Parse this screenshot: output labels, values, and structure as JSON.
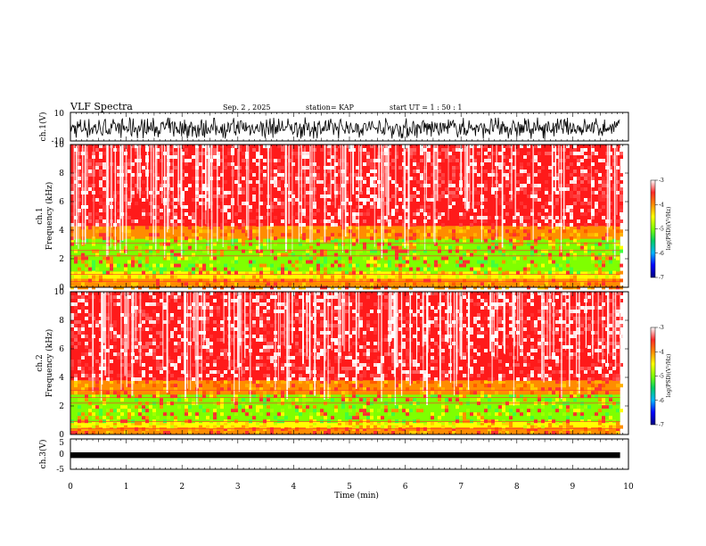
{
  "header": {
    "title": "VLF Spectra",
    "date": "Sep. 2 , 2025",
    "station": "station= KAP",
    "start": "start  UT =  1 : 50 : 1"
  },
  "colorbar": {
    "label": "log(PSD)(V²/Hz)",
    "ticks": [
      "-3",
      "-4",
      "-5",
      "-6",
      "-7"
    ],
    "colors": [
      "#ffffff",
      "#ff2a2a",
      "#ff8c00",
      "#ffff00",
      "#7fff00",
      "#00cc66",
      "#00b4ff",
      "#0000ff",
      "#000080"
    ]
  },
  "chart_data": [
    {
      "type": "line",
      "name": "ch.1 waveform",
      "ylabel": "ch.1(V)",
      "ylim": [
        -10,
        10
      ],
      "yticks": [
        "10",
        "-10"
      ],
      "xlim": [
        0,
        10
      ],
      "color": "#000000"
    },
    {
      "type": "heatmap",
      "name": "ch.1 spectrogram",
      "ylabel": "ch.1\nFrequency (kHz)",
      "ylim": [
        0,
        10
      ],
      "yticks": [
        "0",
        "2",
        "4",
        "6",
        "8",
        "10"
      ],
      "xlim": [
        0,
        9.85
      ],
      "bands_khz": [
        {
          "from": 0.0,
          "to": 0.6,
          "level": "orange"
        },
        {
          "from": 0.6,
          "to": 1.1,
          "level": "yellow-green"
        },
        {
          "from": 1.1,
          "to": 3.4,
          "level": "green"
        },
        {
          "from": 3.4,
          "to": 4.3,
          "level": "orange"
        },
        {
          "from": 4.3,
          "to": 10.0,
          "level": "red"
        }
      ]
    },
    {
      "type": "heatmap",
      "name": "ch.2 spectrogram",
      "ylabel": "ch.2\nFrequency (kHz)",
      "ylim": [
        0,
        10
      ],
      "yticks": [
        "0",
        "2",
        "4",
        "6",
        "8",
        "10"
      ],
      "xlim": [
        0,
        9.85
      ],
      "bands_khz": [
        {
          "from": 0.0,
          "to": 0.5,
          "level": "orange"
        },
        {
          "from": 0.5,
          "to": 0.9,
          "level": "yellow-green"
        },
        {
          "from": 0.9,
          "to": 2.8,
          "level": "green"
        },
        {
          "from": 2.8,
          "to": 3.8,
          "level": "orange"
        },
        {
          "from": 3.8,
          "to": 10.0,
          "level": "red"
        }
      ]
    },
    {
      "type": "line",
      "name": "ch.3 waveform",
      "ylabel": "ch.3(V)",
      "ylim": [
        -5,
        5
      ],
      "yticks": [
        "5",
        "0",
        "-5"
      ],
      "xlim": [
        0,
        10
      ],
      "band": [
        -1,
        0
      ],
      "color": "#000000"
    }
  ],
  "xaxis": {
    "label": "Time (min)",
    "range": [
      0,
      10
    ],
    "ticks": [
      "0",
      "1",
      "2",
      "3",
      "4",
      "5",
      "6",
      "7",
      "8",
      "9",
      "10"
    ]
  }
}
